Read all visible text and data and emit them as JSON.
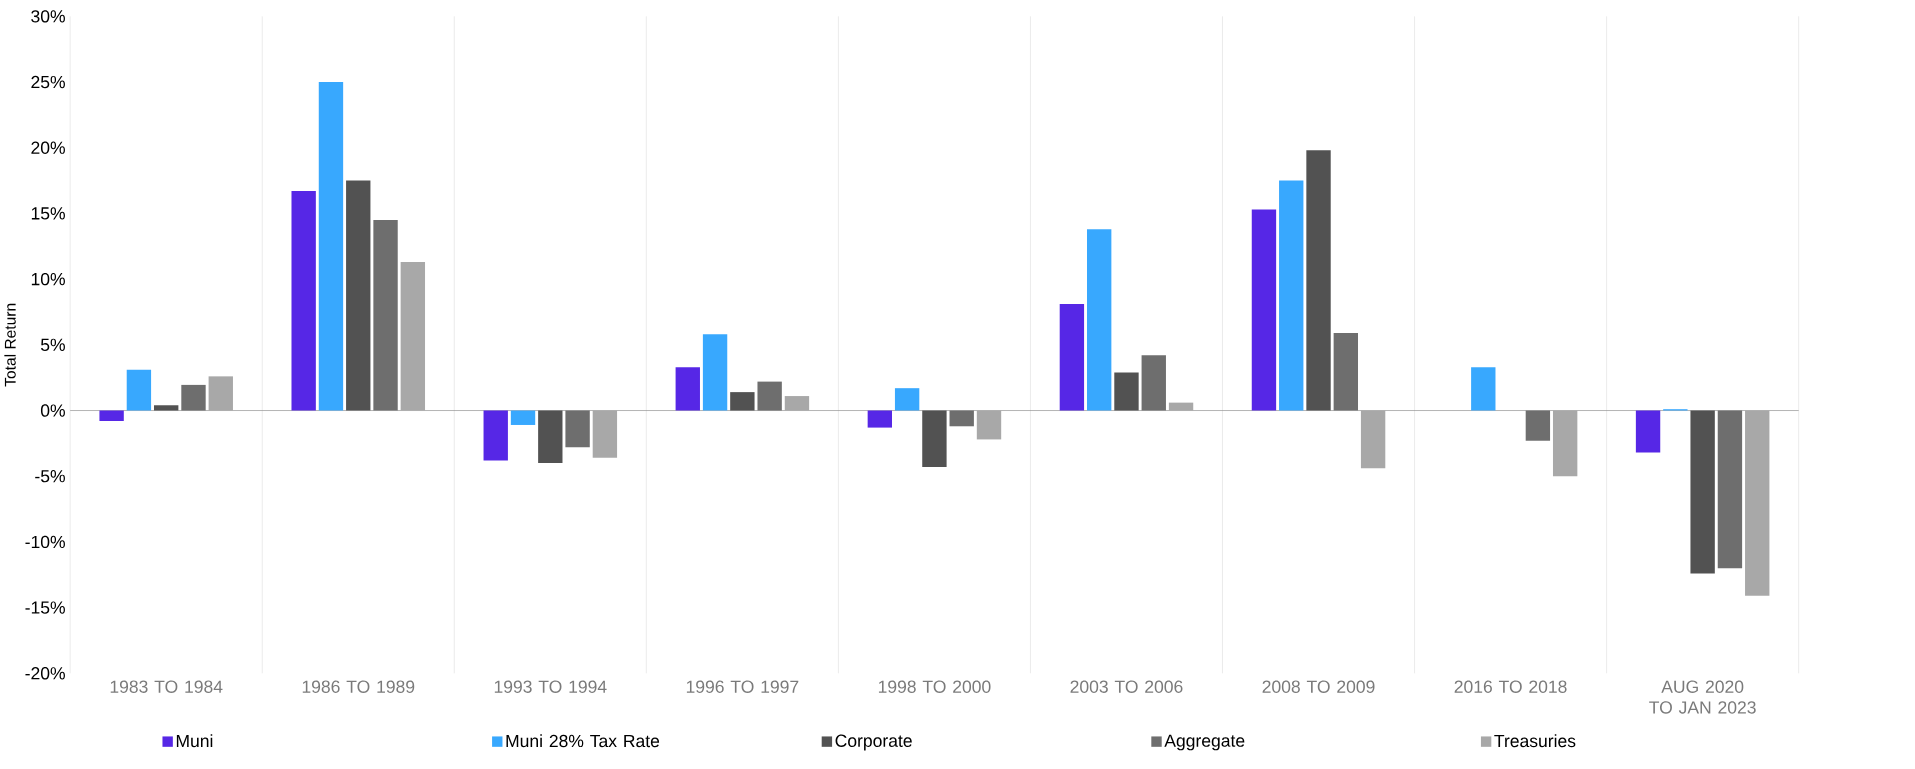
{
  "chart_data": {
    "type": "bar",
    "ylabel": "Total Return",
    "categories": [
      "1983 TO 1984",
      "1986 TO 1989",
      "1993 TO 1994",
      "1996 TO 1997",
      "1998 TO 2000",
      "2003 TO 2006",
      "2008 TO 2009",
      "2016 TO 2018",
      "AUG 2020 TO JAN 2023"
    ],
    "series": [
      {
        "name": "Muni",
        "color": "#5627e6",
        "values": [
          -0.8,
          16.7,
          -3.8,
          3.3,
          -1.3,
          8.1,
          15.3,
          null,
          -3.2
        ]
      },
      {
        "name": "Muni 28% Tax Rate",
        "color": "#38a8fe",
        "values": [
          3.1,
          25.0,
          -1.1,
          5.8,
          1.7,
          13.8,
          17.5,
          3.3,
          0.1
        ]
      },
      {
        "name": "Corporate",
        "color": "#525252",
        "values": [
          0.4,
          17.5,
          -4.0,
          1.4,
          -4.3,
          2.9,
          19.8,
          null,
          -12.4
        ]
      },
      {
        "name": "Aggregate",
        "color": "#6e6e6e",
        "values": [
          1.95,
          14.5,
          -2.8,
          2.2,
          -1.2,
          4.2,
          5.9,
          -2.3,
          -12.0
        ]
      },
      {
        "name": "Treasuries",
        "color": "#a8a8a8",
        "values": [
          2.6,
          11.3,
          -3.6,
          1.1,
          -2.2,
          0.6,
          -4.4,
          -5.0,
          -14.1
        ]
      }
    ],
    "ylim": [
      -20,
      30
    ],
    "yticks": [
      {
        "value": -20,
        "label": "-20%"
      },
      {
        "value": -15,
        "label": "-15%"
      },
      {
        "value": -10,
        "label": "-10%"
      },
      {
        "value": -5,
        "label": "-5%"
      },
      {
        "value": 0,
        "label": "0%"
      },
      {
        "value": 5,
        "label": "5%"
      },
      {
        "value": 10,
        "label": "10%"
      },
      {
        "value": 15,
        "label": "15%"
      },
      {
        "value": 20,
        "label": "20%"
      },
      {
        "value": 25,
        "label": "25%"
      },
      {
        "value": 30,
        "label": "30%"
      }
    ],
    "grid": "x",
    "legend": "bottom"
  }
}
